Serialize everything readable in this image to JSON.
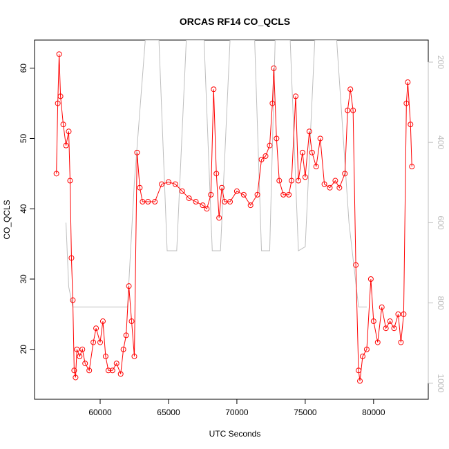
{
  "chart_data": {
    "type": "line",
    "title": "ORCAS RF14 CO_QCLS",
    "x_label": "UTC Seconds",
    "y_label": "CO_QCLS",
    "xlim": [
      55200,
      84000
    ],
    "ylim": [
      12.9,
      64.0
    ],
    "y2lim": [
      1040,
      145
    ],
    "xticks": [
      60000,
      65000,
      70000,
      75000,
      80000
    ],
    "yticks": [
      20,
      30,
      40,
      50,
      60
    ],
    "y2ticks": [
      200,
      400,
      600,
      800,
      1000
    ],
    "series": [
      {
        "color": "#ff0000",
        "markers": true,
        "x": [
          56800,
          56900,
          57000,
          57100,
          57300,
          57500,
          57700,
          57800,
          57900,
          58000,
          58100,
          58200,
          58300,
          58500,
          58700,
          58900,
          59200,
          59500,
          59700,
          60000,
          60200,
          60400,
          60600,
          60900,
          61200,
          61500,
          61700,
          61900,
          62100,
          62300,
          62500,
          62700,
          62900,
          63100,
          63500,
          64000,
          64500,
          65000,
          65500,
          66000,
          66500,
          67000,
          67500,
          67800,
          68100,
          68300,
          68500,
          68700,
          68900,
          69100,
          69500,
          70000,
          70500,
          71000,
          71500,
          71800,
          72100,
          72400,
          72600,
          72700,
          72900,
          73100,
          73400,
          73800,
          74000,
          74300,
          74500,
          74800,
          75000,
          75300,
          75500,
          75800,
          76100,
          76400,
          76800,
          77200,
          77500,
          77900,
          78100,
          78300,
          78500,
          78700,
          78900,
          79000,
          79200,
          79500,
          79800,
          80000,
          80300,
          80600,
          80900,
          81200,
          81500,
          81800,
          82000,
          82200,
          82400,
          82500,
          82700,
          82800
        ],
        "values": [
          45,
          55,
          62,
          56,
          52,
          49,
          51,
          44,
          33,
          27,
          17,
          16,
          20,
          19,
          20,
          18,
          17,
          21,
          23,
          21,
          24,
          19,
          17,
          17,
          18,
          16.5,
          20,
          22,
          29,
          24,
          19,
          48,
          43,
          41,
          41,
          41,
          43.5,
          43.8,
          43.5,
          42.5,
          41.5,
          41,
          40.5,
          40,
          42,
          57,
          45,
          38.7,
          43,
          41,
          41,
          42.5,
          42,
          40.5,
          42,
          47,
          47.5,
          49,
          55,
          60,
          50,
          44,
          42,
          42,
          44,
          56,
          44,
          48,
          44.5,
          51,
          48,
          46,
          50,
          43.5,
          43,
          44,
          43,
          45,
          54,
          57,
          54,
          32,
          17,
          15.5,
          19,
          20,
          30,
          24,
          21,
          26,
          23,
          24,
          23,
          25,
          21,
          25,
          55,
          58,
          52,
          46
        ]
      },
      {
        "color": "#bebebe",
        "axis": "y2",
        "markers": false,
        "x": [
          57500,
          57700,
          58000,
          62000,
          62500,
          63300,
          64300,
          64900,
          65600,
          66300,
          67600,
          68200,
          68800,
          69500,
          71300,
          71800,
          72400,
          72800,
          73900,
          74500,
          75000,
          75700,
          77300,
          78200,
          78900,
          79500
        ],
        "values": [
          600,
          760,
          810,
          810,
          500,
          145,
          145,
          670,
          670,
          145,
          145,
          670,
          670,
          145,
          145,
          670,
          670,
          145,
          145,
          670,
          660,
          145,
          145,
          600,
          810,
          810
        ]
      }
    ]
  }
}
